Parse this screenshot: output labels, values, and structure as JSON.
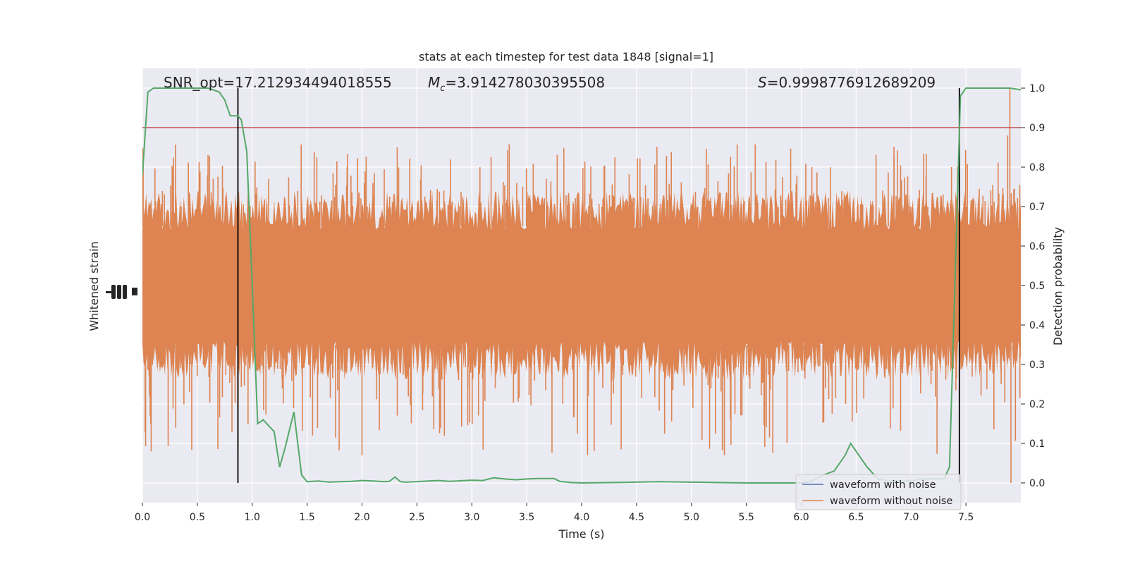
{
  "title": "stats at each timestep for test data 1848 [signal=1]",
  "stats": {
    "snr": "SNR_opt=17.212934494018555",
    "mc_symbol": "M",
    "mc_sub": "c",
    "mc_value": "=3.914278030395508",
    "s_symbol": "S",
    "s_value": "=0.9998776912689209"
  },
  "colors": {
    "background": "#eaeaf2",
    "grid": "#ffffff",
    "noise": "#dd8452",
    "with_noise": "#4c72b0",
    "probability": "#55a868",
    "threshold": "#c44e52",
    "markers": "#000000"
  },
  "chart_data": {
    "type": "line",
    "xlabel": "Time (s)",
    "ylabel_left": "Whitened strain",
    "ylabel_right": "Detection probability",
    "xlim": [
      0.0,
      8.0
    ],
    "ylim_right": [
      -0.05,
      1.05
    ],
    "x_ticks": [
      "0.0",
      "0.5",
      "1.0",
      "1.5",
      "2.0",
      "2.5",
      "3.0",
      "3.5",
      "4.0",
      "4.5",
      "5.0",
      "5.5",
      "6.0",
      "6.5",
      "7.0",
      "7.5"
    ],
    "x_tick_values": [
      0.0,
      0.5,
      1.0,
      1.5,
      2.0,
      2.5,
      3.0,
      3.5,
      4.0,
      4.5,
      5.0,
      5.5,
      6.0,
      6.5,
      7.0,
      7.5
    ],
    "y_ticks_right": [
      "0.0",
      "0.1",
      "0.2",
      "0.3",
      "0.4",
      "0.5",
      "0.6",
      "0.7",
      "0.8",
      "0.9",
      "1.0"
    ],
    "y_tick_values_right": [
      0.0,
      0.1,
      0.2,
      0.3,
      0.4,
      0.5,
      0.6,
      0.7,
      0.8,
      0.9,
      1.0
    ],
    "threshold": 0.9,
    "vertical_markers": [
      0.87,
      7.44
    ],
    "grid": true,
    "legend_position": "lower right",
    "series": [
      {
        "name": "waveform with noise",
        "kind": "strain",
        "values": []
      },
      {
        "name": "waveform without noise",
        "kind": "strain",
        "envelope": {
          "center": 0.5,
          "body_lo": 0.3,
          "body_hi": 0.7,
          "spike_lo": 0.0,
          "spike_hi": 1.0
        }
      },
      {
        "kind": "probability",
        "x": [
          0.0,
          0.05,
          0.1,
          0.2,
          0.3,
          0.4,
          0.5,
          0.6,
          0.7,
          0.75,
          0.8,
          0.87,
          0.9,
          0.95,
          1.0,
          1.05,
          1.1,
          1.2,
          1.25,
          1.3,
          1.38,
          1.45,
          1.5,
          1.6,
          1.7,
          1.8,
          1.9,
          2.0,
          2.1,
          2.2,
          2.25,
          2.3,
          2.35,
          2.4,
          2.5,
          2.6,
          2.7,
          2.8,
          3.0,
          3.1,
          3.2,
          3.3,
          3.4,
          3.5,
          3.6,
          3.75,
          3.8,
          3.9,
          4.0,
          4.3,
          4.7,
          5.0,
          5.5,
          6.0,
          6.1,
          6.2,
          6.3,
          6.4,
          6.45,
          6.5,
          6.55,
          6.6,
          6.7,
          6.8,
          7.0,
          7.1,
          7.2,
          7.3,
          7.35,
          7.4,
          7.45,
          7.5,
          7.55,
          7.6,
          7.7,
          7.8,
          7.9,
          8.0
        ],
        "values": [
          0.78,
          0.99,
          1.0,
          1.0,
          1.0,
          1.0,
          1.0,
          1.0,
          0.99,
          0.97,
          0.93,
          0.93,
          0.92,
          0.84,
          0.5,
          0.15,
          0.16,
          0.13,
          0.04,
          0.09,
          0.18,
          0.02,
          0.003,
          0.005,
          0.002,
          0.003,
          0.004,
          0.006,
          0.005,
          0.003,
          0.004,
          0.015,
          0.003,
          0.002,
          0.003,
          0.005,
          0.006,
          0.004,
          0.007,
          0.006,
          0.013,
          0.01,
          0.008,
          0.01,
          0.011,
          0.011,
          0.004,
          0.001,
          0.0,
          0.001,
          0.003,
          0.002,
          0.0,
          0.0,
          0.005,
          0.02,
          0.03,
          0.07,
          0.1,
          0.08,
          0.06,
          0.04,
          0.01,
          0.005,
          0.005,
          0.01,
          0.01,
          0.01,
          0.04,
          0.5,
          0.98,
          1.0,
          1.0,
          1.0,
          1.0,
          1.0,
          1.0,
          0.996
        ]
      }
    ]
  }
}
